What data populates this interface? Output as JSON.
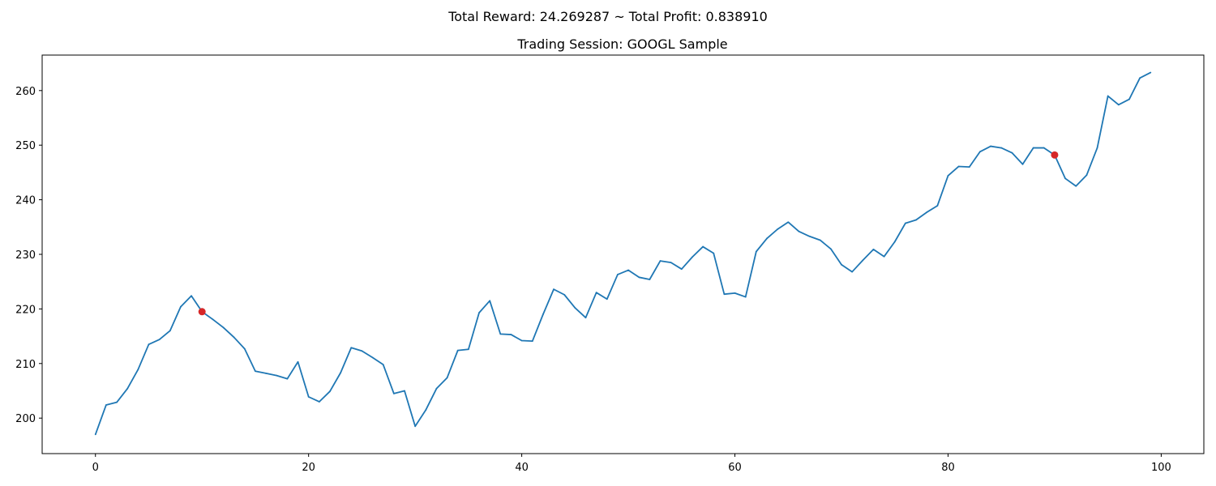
{
  "chart_data": {
    "type": "line",
    "suptitle": "Total Reward: 24.269287 ~ Total Profit: 0.838910",
    "title": "Trading Session: GOOGL Sample",
    "xlabel": "",
    "ylabel": "",
    "xlim": [
      -5,
      104
    ],
    "ylim": [
      193.5,
      266.5
    ],
    "x_ticks": [
      0,
      20,
      40,
      60,
      80,
      100
    ],
    "y_ticks": [
      200,
      210,
      220,
      230,
      240,
      250,
      260
    ],
    "grid": false,
    "legend": "none",
    "series": [
      {
        "color": "#1f77b4",
        "x": [
          0,
          1,
          2,
          3,
          4,
          5,
          6,
          7,
          8,
          9,
          10,
          11,
          12,
          13,
          14,
          15,
          16,
          17,
          18,
          19,
          20,
          21,
          22,
          23,
          24,
          25,
          26,
          27,
          28,
          29,
          30,
          31,
          32,
          33,
          34,
          35,
          36,
          37,
          38,
          39,
          40,
          41,
          42,
          43,
          44,
          45,
          46,
          47,
          48,
          49,
          50,
          51,
          52,
          53,
          54,
          55,
          56,
          57,
          58,
          59,
          60,
          61,
          62,
          63,
          64,
          65,
          66,
          67,
          68,
          69,
          70,
          71,
          72,
          73,
          74,
          75,
          76,
          77,
          78,
          79,
          80,
          81,
          82,
          83,
          84,
          85,
          86,
          87,
          88,
          89,
          90,
          91,
          92,
          93,
          94,
          95,
          96,
          97,
          98,
          99
        ],
        "values": [
          197.0,
          202.4,
          202.9,
          205.4,
          208.9,
          213.5,
          214.4,
          216.0,
          220.4,
          222.4,
          219.5,
          218.1,
          216.6,
          214.8,
          212.7,
          208.6,
          208.2,
          207.8,
          207.2,
          210.3,
          203.9,
          203.0,
          204.9,
          208.3,
          212.9,
          212.3,
          211.1,
          209.8,
          204.5,
          205.0,
          198.5,
          201.5,
          205.4,
          207.4,
          212.4,
          212.6,
          219.3,
          221.5,
          215.4,
          215.3,
          214.2,
          214.1,
          219.0,
          223.6,
          222.6,
          220.2,
          218.4,
          223.0,
          221.8,
          226.3,
          227.1,
          225.8,
          225.4,
          228.8,
          228.5,
          227.3,
          229.5,
          231.4,
          230.2,
          222.7,
          222.9,
          222.2,
          230.5,
          232.9,
          234.6,
          235.9,
          234.2,
          233.3,
          232.6,
          231.0,
          228.1,
          226.8,
          228.9,
          230.9,
          229.6,
          232.3,
          235.7,
          236.3,
          237.7,
          238.9,
          244.4,
          246.1,
          246.0,
          248.8,
          249.8,
          249.5,
          248.6,
          246.5,
          249.5,
          249.5,
          248.2,
          243.9,
          242.5,
          244.5,
          249.5,
          259.0,
          257.4,
          258.4,
          262.3,
          263.3
        ]
      }
    ],
    "markers": {
      "color": "#d62728",
      "points": [
        {
          "x": 10,
          "y": 219.5
        },
        {
          "x": 90,
          "y": 248.2
        }
      ]
    }
  }
}
